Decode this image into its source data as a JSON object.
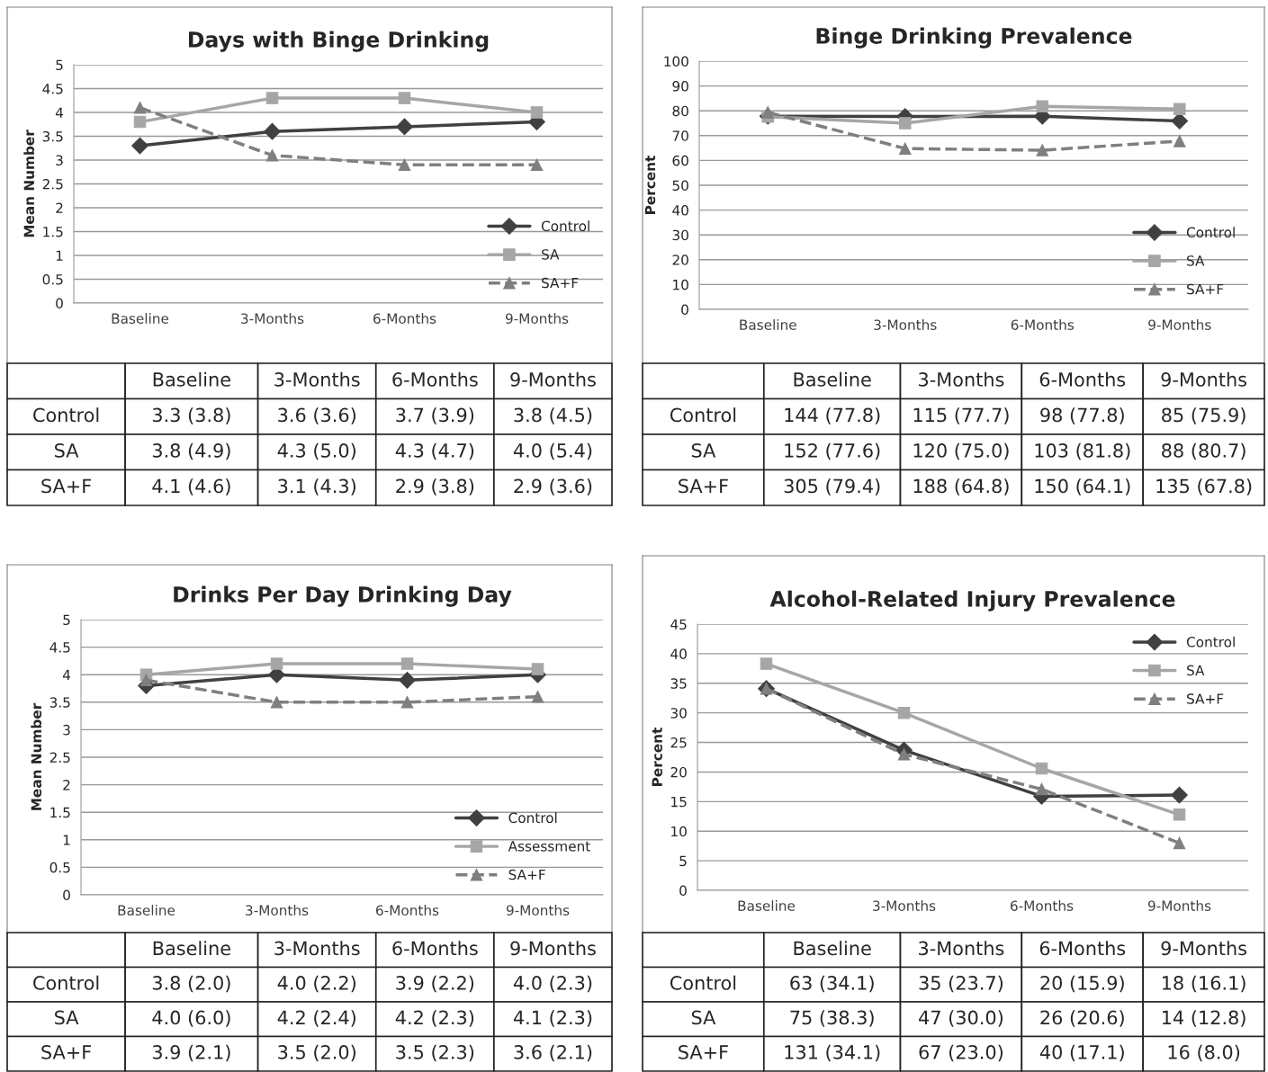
{
  "chart_data": [
    {
      "type": "line",
      "title": "Days with Binge Drinking",
      "ylabel": "Mean Number",
      "categories": [
        "Baseline",
        "3-Months",
        "6-Months",
        "9-Months"
      ],
      "ylim": [
        0,
        5
      ],
      "yticks": [
        0,
        0.5,
        1,
        1.5,
        2,
        2.5,
        3,
        3.5,
        4,
        4.5,
        5
      ],
      "grid": "y",
      "legend": "bottom right",
      "annotations": [
        "Control",
        "SA",
        "SA+F"
      ],
      "series": [
        {
          "name": "Control",
          "color": "#404040",
          "marker": "diamond",
          "line_style": "solid",
          "values": [
            3.3,
            3.6,
            3.7,
            3.8
          ],
          "value_labels": [
            "3.3 (3.8)",
            "3.6 (3.6)",
            "3.7 (3.9)",
            "3.8 (4.5)"
          ]
        },
        {
          "name": "SA",
          "color": "#a6a6a6",
          "marker": "square",
          "line_style": "solid",
          "values": [
            3.8,
            4.3,
            4.3,
            4.0
          ],
          "value_labels": [
            "3.8 (4.9)",
            "4.3 (5.0)",
            "4.3 (4.7)",
            "4.0 (5.4)"
          ]
        },
        {
          "name": "SA+F",
          "color": "#7f7f7f",
          "marker": "triangle",
          "line_style": "dashed",
          "values": [
            4.1,
            3.1,
            2.9,
            2.9
          ],
          "value_labels": [
            "4.1 (4.6)",
            "3.1 (4.3)",
            "2.9 (3.8)",
            "2.9 (3.6)"
          ]
        }
      ]
    },
    {
      "type": "line",
      "title": "Binge Drinking Prevalence",
      "ylabel": "Percent",
      "categories": [
        "Baseline",
        "3-Months",
        "6-Months",
        "9-Months"
      ],
      "ylim": [
        0,
        100
      ],
      "yticks": [
        0,
        10,
        20,
        30,
        40,
        50,
        60,
        70,
        80,
        90,
        100
      ],
      "grid": "y",
      "legend": "bottom right",
      "annotations": [
        "Control",
        "SA",
        "SA+F"
      ],
      "series": [
        {
          "name": "Control",
          "color": "#404040",
          "marker": "diamond",
          "line_style": "solid",
          "values": [
            77.8,
            77.7,
            77.8,
            75.9
          ],
          "value_labels": [
            "144 (77.8)",
            "115 (77.7)",
            "98 (77.8)",
            "85 (75.9)"
          ]
        },
        {
          "name": "SA",
          "color": "#a6a6a6",
          "marker": "square",
          "line_style": "solid",
          "values": [
            77.6,
            75.0,
            81.8,
            80.7
          ],
          "value_labels": [
            "152 (77.6)",
            "120 (75.0)",
            "103 (81.8)",
            "88 (80.7)"
          ]
        },
        {
          "name": "SA+F",
          "color": "#7f7f7f",
          "marker": "triangle",
          "line_style": "dashed",
          "values": [
            79.4,
            64.8,
            64.1,
            67.8
          ],
          "value_labels": [
            "305 (79.4)",
            "188 (64.8)",
            "150 (64.1)",
            "135 (67.8)"
          ]
        }
      ]
    },
    {
      "type": "line",
      "title": "Drinks Per Day Drinking Day",
      "ylabel": "Mean Number",
      "categories": [
        "Baseline",
        "3-Months",
        "6-Months",
        "9-Months"
      ],
      "ylim": [
        0,
        5
      ],
      "yticks": [
        0,
        0.5,
        1,
        1.5,
        2,
        2.5,
        3,
        3.5,
        4,
        4.5,
        5
      ],
      "grid": "y",
      "legend": "bottom right",
      "annotations": [
        "Control",
        "SA",
        "SA+F"
      ],
      "series": [
        {
          "name": "Control",
          "color": "#404040",
          "marker": "diamond",
          "line_style": "solid",
          "values": [
            3.8,
            4.0,
            3.9,
            4.0
          ],
          "value_labels": [
            "3.8 (2.0)",
            "4.0 (2.2)",
            "3.9 (2.2)",
            "4.0 (2.3)"
          ]
        },
        {
          "name": "Assessment",
          "color": "#a6a6a6",
          "marker": "square",
          "line_style": "solid",
          "values": [
            4.0,
            4.2,
            4.2,
            4.1
          ],
          "value_labels": [
            "4.0 (6.0)",
            "4.2 (2.4)",
            "4.2 (2.3)",
            "4.1 (2.3)"
          ]
        },
        {
          "name": "SA+F",
          "color": "#7f7f7f",
          "marker": "triangle",
          "line_style": "dashed",
          "values": [
            3.9,
            3.5,
            3.5,
            3.6
          ],
          "value_labels": [
            "3.9 (2.1)",
            "3.5 (2.0)",
            "3.5 (2.3)",
            "3.6 (2.1)"
          ]
        }
      ]
    },
    {
      "type": "line",
      "title": "Alcohol-Related Injury Prevalence",
      "ylabel": "Percent",
      "categories": [
        "Baseline",
        "3-Months",
        "6-Months",
        "9-Months"
      ],
      "ylim": [
        0,
        45
      ],
      "yticks": [
        0,
        5,
        10,
        15,
        20,
        25,
        30,
        35,
        40,
        45
      ],
      "grid": "y",
      "legend": "top right",
      "annotations": [
        "Control",
        "SA",
        "SA+F"
      ],
      "series": [
        {
          "name": "Control",
          "color": "#404040",
          "marker": "diamond",
          "line_style": "solid",
          "values": [
            34.1,
            23.7,
            15.9,
            16.1
          ],
          "value_labels": [
            "63 (34.1)",
            "35 (23.7)",
            "20 (15.9)",
            "18 (16.1)"
          ]
        },
        {
          "name": "SA",
          "color": "#a6a6a6",
          "marker": "square",
          "line_style": "solid",
          "values": [
            38.3,
            30.0,
            20.6,
            12.8
          ],
          "value_labels": [
            "75 (38.3)",
            "47 (30.0)",
            "26 (20.6)",
            "14 (12.8)"
          ]
        },
        {
          "name": "SA+F",
          "color": "#7f7f7f",
          "marker": "triangle",
          "line_style": "dashed",
          "values": [
            34.1,
            23.0,
            17.1,
            8.0
          ],
          "value_labels": [
            "131 (34.1)",
            "67 (23.0)",
            "40 (17.1)",
            "16 (8.0)"
          ]
        }
      ]
    }
  ]
}
